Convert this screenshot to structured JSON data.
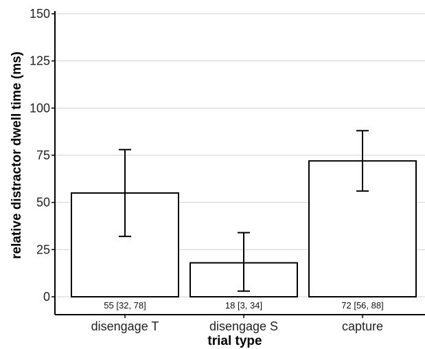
{
  "chart_data": {
    "type": "bar",
    "title": "",
    "xlabel": "trial type",
    "ylabel": "relative distractor dwell time (ms)",
    "ylim": [
      0,
      150
    ],
    "yticks": [
      0,
      25,
      50,
      75,
      100,
      125,
      150
    ],
    "ytick_labels": [
      "0",
      "25",
      "50",
      "75",
      "100",
      "125",
      "150"
    ],
    "grid": "horizontal",
    "legend": "none",
    "categories": [
      "disengage T",
      "disengage S",
      "capture"
    ],
    "values": [
      55,
      18,
      72
    ],
    "error_low": [
      32,
      3,
      56
    ],
    "error_high": [
      78,
      34,
      88
    ],
    "data_labels": [
      "55 [32, 78]",
      "18 [3, 34]",
      "72 [56, 88]"
    ],
    "colors": {
      "bar_fill": "#ffffff",
      "bar_stroke": "#000000",
      "grid": "#d0d0d0",
      "axis": "#000000"
    }
  }
}
